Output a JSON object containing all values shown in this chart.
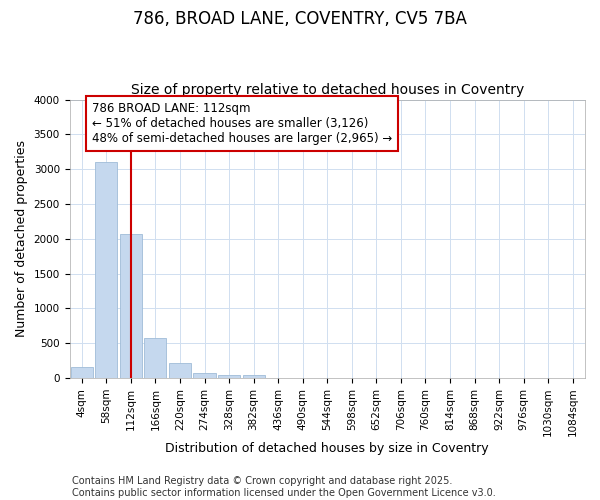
{
  "title": "786, BROAD LANE, COVENTRY, CV5 7BA",
  "subtitle": "Size of property relative to detached houses in Coventry",
  "xlabel": "Distribution of detached houses by size in Coventry",
  "ylabel": "Number of detached properties",
  "categories": [
    "4sqm",
    "58sqm",
    "112sqm",
    "166sqm",
    "220sqm",
    "274sqm",
    "328sqm",
    "382sqm",
    "436sqm",
    "490sqm",
    "544sqm",
    "598sqm",
    "652sqm",
    "706sqm",
    "760sqm",
    "814sqm",
    "868sqm",
    "922sqm",
    "976sqm",
    "1030sqm",
    "1084sqm"
  ],
  "values": [
    155,
    3100,
    2075,
    580,
    210,
    75,
    50,
    50,
    0,
    0,
    0,
    0,
    0,
    0,
    0,
    0,
    0,
    0,
    0,
    0,
    0
  ],
  "bar_color": "#c5d8ee",
  "bar_edge_color": "#a0bcd8",
  "vline_x": 2,
  "vline_color": "#cc0000",
  "annotation_text": "786 BROAD LANE: 112sqm\n← 51% of detached houses are smaller (3,126)\n48% of semi-detached houses are larger (2,965) →",
  "annotation_box_facecolor": "#ffffff",
  "annotation_box_edgecolor": "#cc0000",
  "ylim": [
    0,
    4000
  ],
  "yticks": [
    0,
    500,
    1000,
    1500,
    2000,
    2500,
    3000,
    3500,
    4000
  ],
  "grid_color": "#d0dff0",
  "plot_bg_color": "#ffffff",
  "fig_bg_color": "#ffffff",
  "footer_text": "Contains HM Land Registry data © Crown copyright and database right 2025.\nContains public sector information licensed under the Open Government Licence v3.0.",
  "title_fontsize": 12,
  "subtitle_fontsize": 10,
  "axis_label_fontsize": 9,
  "tick_fontsize": 7.5,
  "annotation_fontsize": 8.5,
  "footer_fontsize": 7
}
